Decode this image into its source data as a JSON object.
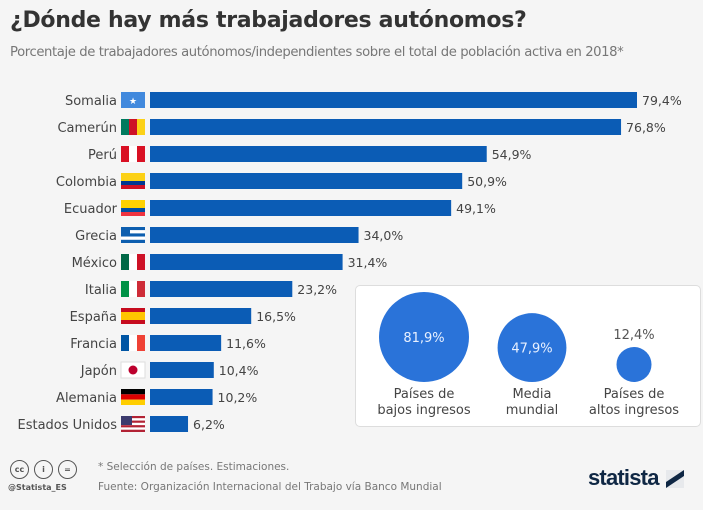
{
  "chart_data": {
    "type": "bar",
    "orientation": "horizontal",
    "title": "¿Dónde hay más trabajadores autónomos?",
    "subtitle": "Porcentaje de trabajadores autónomos/independientes sobre el total de población activa en 2018*",
    "categories": [
      "Somalia",
      "Camerún",
      "Perú",
      "Colombia",
      "Ecuador",
      "Grecia",
      "México",
      "Italia",
      "España",
      "Francia",
      "Japón",
      "Alemania",
      "Estados Unidos"
    ],
    "values": [
      79.4,
      76.8,
      54.9,
      50.9,
      49.1,
      34.0,
      31.4,
      23.2,
      16.5,
      11.6,
      10.4,
      10.2,
      6.2
    ],
    "labels": [
      "79,4%",
      "76,8%",
      "54,9%",
      "50,9%",
      "49,1%",
      "34,0%",
      "31,4%",
      "23,2%",
      "16,5%",
      "11,6%",
      "10,4%",
      "10,2%",
      "6,2%"
    ],
    "flags": [
      "somalia",
      "cameroon",
      "peru",
      "colombia",
      "ecuador",
      "greece",
      "mexico",
      "italy",
      "spain",
      "france",
      "japan",
      "germany",
      "usa"
    ],
    "bar_color": "#0b5cb5",
    "xlim": [
      0,
      80
    ],
    "grid": false,
    "bubbles": [
      {
        "name": "Países de bajos ingresos",
        "line1": "Países de",
        "line2": "bajos ingresos",
        "value": 81.9,
        "label": "81,9%"
      },
      {
        "name": "Media mundial",
        "line1": "Media",
        "line2": "mundial",
        "value": 47.9,
        "label": "47,9%"
      },
      {
        "name": "Países de altos ingresos",
        "line1": "Países de",
        "line2": "altos ingresos",
        "value": 12.4,
        "label": "12,4%"
      }
    ],
    "bubble_color": "#2a73d9"
  },
  "footer": {
    "note": "* Selección de países. Estimaciones.",
    "source": "Fuente: Organización Internacional del Trabajo vía Banco Mundial",
    "handle": "@Statista_ES",
    "cc_icons": [
      "cc",
      "i",
      "="
    ],
    "brand": "statista"
  }
}
